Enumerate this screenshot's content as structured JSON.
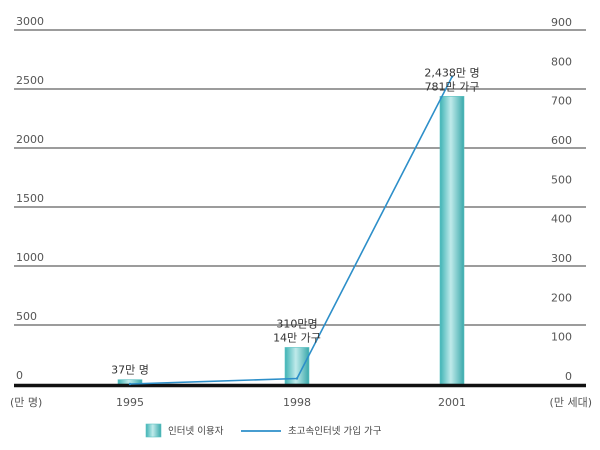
{
  "chart_data": {
    "type": "bar",
    "categories": [
      "1995",
      "1998",
      "2001"
    ],
    "series": [
      {
        "name": "인터넷 이용자",
        "kind": "bar",
        "axis": "left",
        "values": [
          37,
          310,
          2438
        ],
        "color": "#5ec3c4"
      },
      {
        "name": "초고속인터넷 가입 가구",
        "kind": "line",
        "axis": "right",
        "values": [
          0,
          14,
          781
        ],
        "color": "#2d8fc9"
      }
    ],
    "y_left": {
      "unit": "(만 명)",
      "ylim": [
        0,
        3000
      ],
      "ticks": [
        "0",
        "500",
        "1000",
        "1500",
        "2000",
        "2500",
        "3000"
      ]
    },
    "y_right": {
      "unit": "(만 세대)",
      "ylim": [
        0,
        900
      ],
      "ticks": [
        "0",
        "100",
        "200",
        "300",
        "400",
        "500",
        "600",
        "700",
        "800",
        "900"
      ]
    },
    "annotations": [
      {
        "category": "1995",
        "lines": [
          "37만 명"
        ]
      },
      {
        "category": "1998",
        "lines": [
          "310만명",
          "14만 가구"
        ]
      },
      {
        "category": "2001",
        "lines": [
          "2,438만 명",
          "781만 가구"
        ]
      }
    ],
    "grid": true,
    "legend_position": "bottom-center"
  }
}
